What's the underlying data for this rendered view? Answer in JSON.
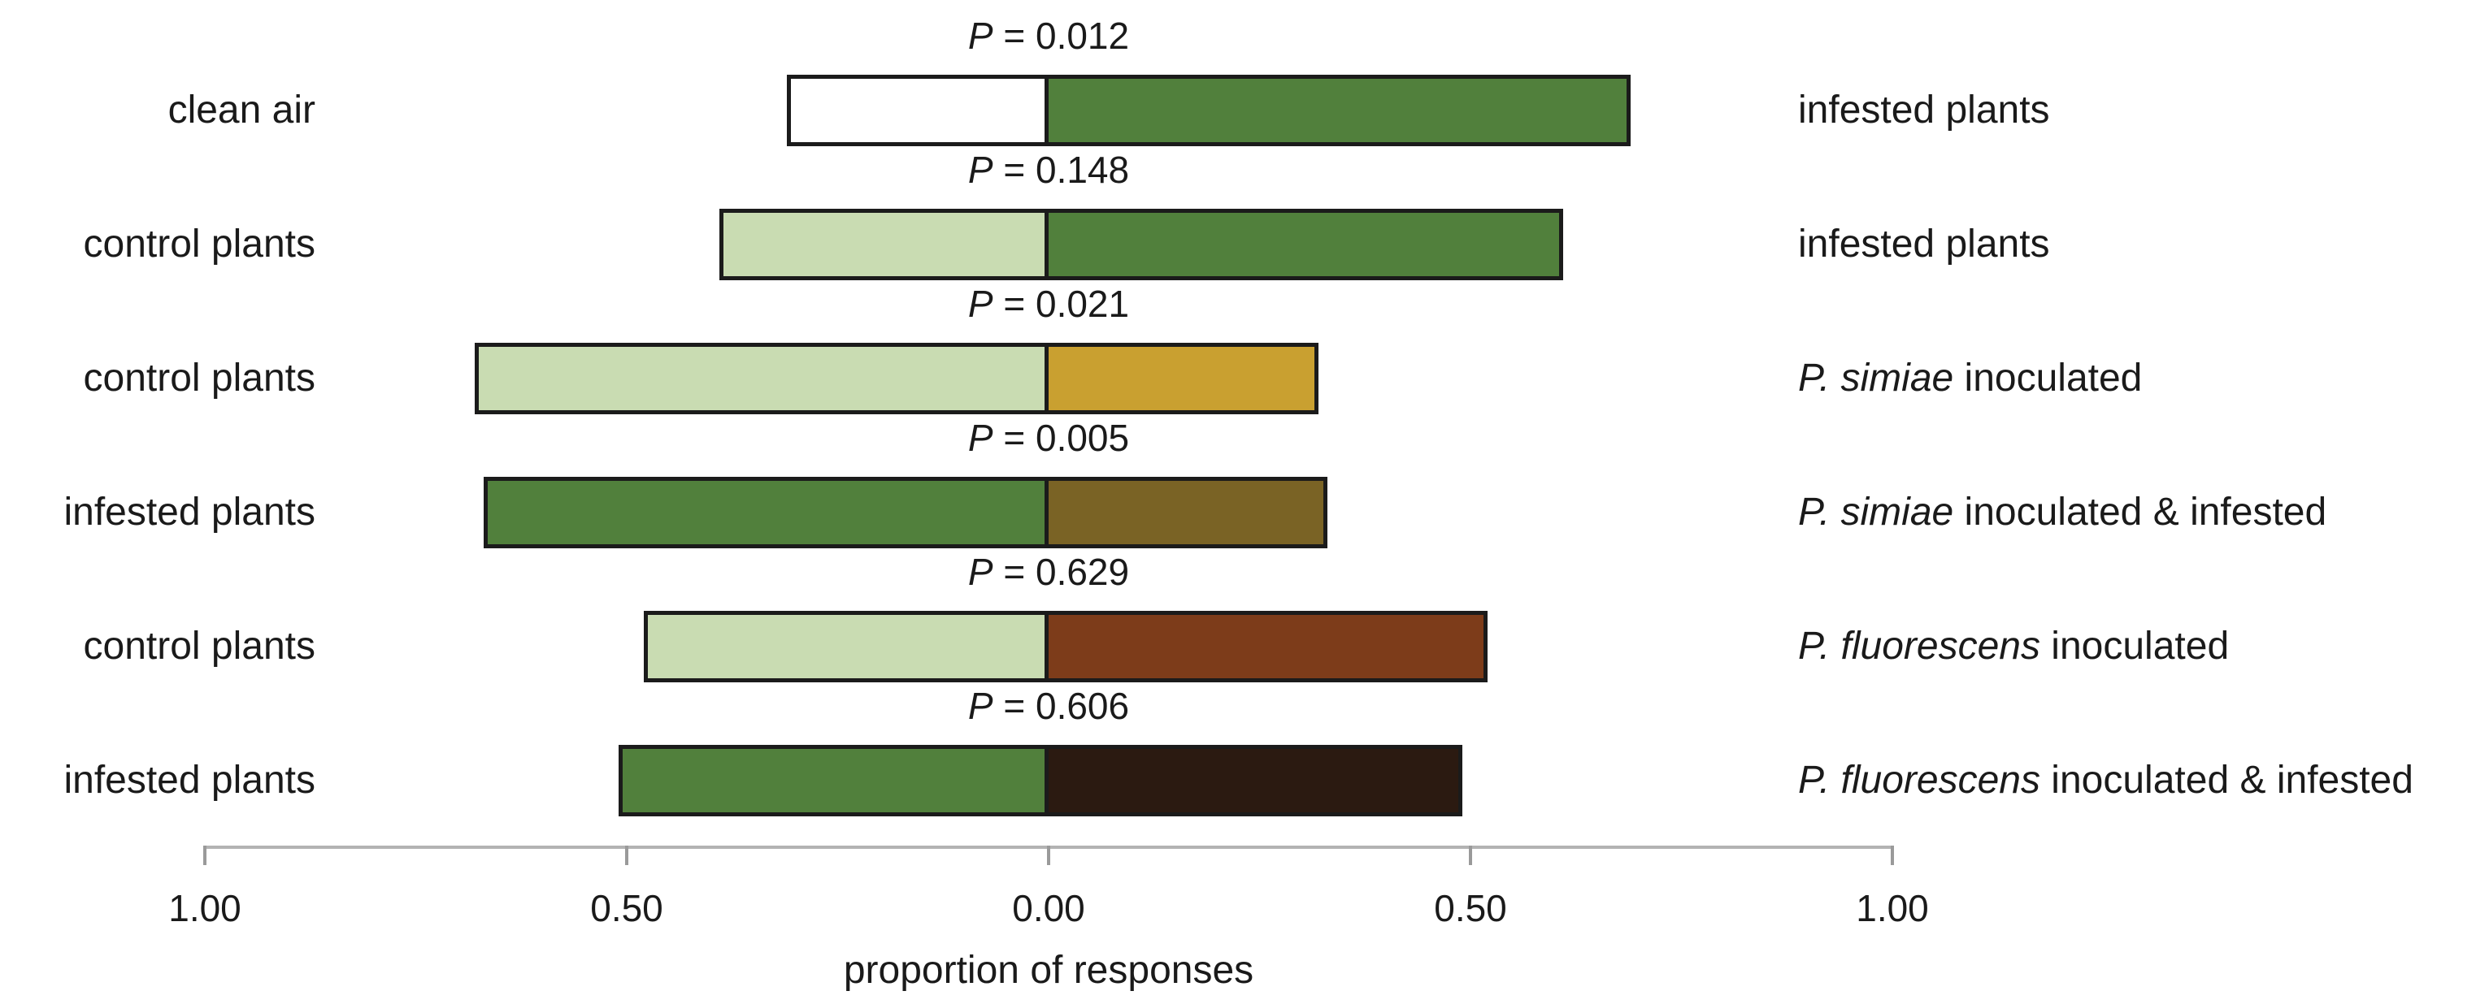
{
  "chart_data": {
    "type": "bar",
    "subtype": "diverging paired-choice proportion bars",
    "title": "",
    "xlabel": "proportion of responses",
    "axis_tick_labels": [
      "1.00",
      "0.50",
      "0.00",
      "0.50",
      "1.00"
    ],
    "xlim": [
      -1.0,
      1.0
    ],
    "legend_position": "none",
    "grid": false,
    "colors": {
      "bar_border": "#1b1b1b",
      "axis_line": "#b3b3b3",
      "axis_tick": "#9a9a9a",
      "text": "#1a1a1a",
      "clean_air": "#ffffff",
      "control_plants": "#c9dcb2",
      "infested_plants": "#51803c",
      "p_simiae_inoculated": "#c9a030",
      "p_simiae_inoculated_infested": "#7a6325",
      "p_fluorescens_inoculated": "#7d3c1a",
      "p_fluorescens_inoculated_infested": "#2b1a11"
    },
    "rows": [
      {
        "left_label": "clean air",
        "right_label_italic": "",
        "right_label_rest": "infested plants",
        "p_label": "P = 0.012",
        "left_value": 0.31,
        "right_value": 0.69,
        "left_color": "#ffffff",
        "right_color": "#51803c"
      },
      {
        "left_label": "control plants",
        "right_label_italic": "",
        "right_label_rest": "infested plants",
        "p_label": "P = 0.148",
        "left_value": 0.39,
        "right_value": 0.61,
        "left_color": "#c9dcb2",
        "right_color": "#51803c"
      },
      {
        "left_label": "control plants",
        "right_label_italic": "P. simiae",
        "right_label_rest": " inoculated",
        "p_label": "P = 0.021",
        "left_value": 0.68,
        "right_value": 0.32,
        "left_color": "#c9dcb2",
        "right_color": "#c9a030"
      },
      {
        "left_label": "infested plants",
        "right_label_italic": "P. simiae",
        "right_label_rest": " inoculated & infested",
        "p_label": "P = 0.005",
        "left_value": 0.67,
        "right_value": 0.33,
        "left_color": "#51803c",
        "right_color": "#7a6325"
      },
      {
        "left_label": "control plants",
        "right_label_italic": "P. fluorescens",
        "right_label_rest": " inoculated",
        "p_label": "P = 0.629",
        "left_value": 0.48,
        "right_value": 0.52,
        "left_color": "#c9dcb2",
        "right_color": "#7d3c1a"
      },
      {
        "left_label": "infested plants",
        "right_label_italic": "P. fluorescens",
        "right_label_rest": " inoculated & infested",
        "p_label": "P = 0.606",
        "left_value": 0.51,
        "right_value": 0.49,
        "left_color": "#51803c",
        "right_color": "#2b1a11"
      }
    ]
  }
}
